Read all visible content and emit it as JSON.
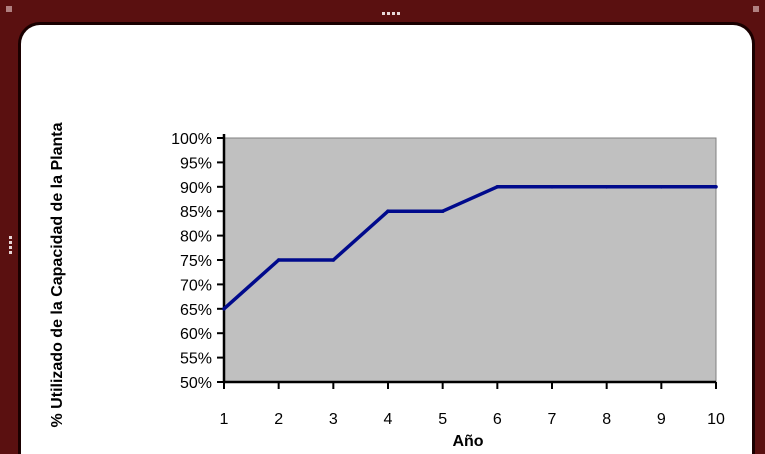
{
  "window": {
    "frame_color": "#5a1010"
  },
  "chart_data": {
    "type": "line",
    "x": [
      1,
      2,
      3,
      4,
      5,
      6,
      7,
      8,
      9,
      10
    ],
    "series": [
      {
        "values": [
          0.65,
          0.75,
          0.75,
          0.85,
          0.85,
          0.9,
          0.9,
          0.9,
          0.9,
          0.9
        ],
        "color": "#000a8c"
      }
    ],
    "xlabel": "Año",
    "ylabel": "% Utilizado de la Capacidad de la Planta",
    "ylim": [
      0.5,
      1.0
    ],
    "xlim": [
      1,
      10
    ],
    "yticks": [
      "50%",
      "55%",
      "60%",
      "65%",
      "70%",
      "75%",
      "80%",
      "85%",
      "90%",
      "95%",
      "100%"
    ],
    "xticks": [
      "1",
      "2",
      "3",
      "4",
      "5",
      "6",
      "7",
      "8",
      "9",
      "10"
    ],
    "plot_background": "#c0c0c0",
    "grid": false,
    "legend": "none"
  }
}
